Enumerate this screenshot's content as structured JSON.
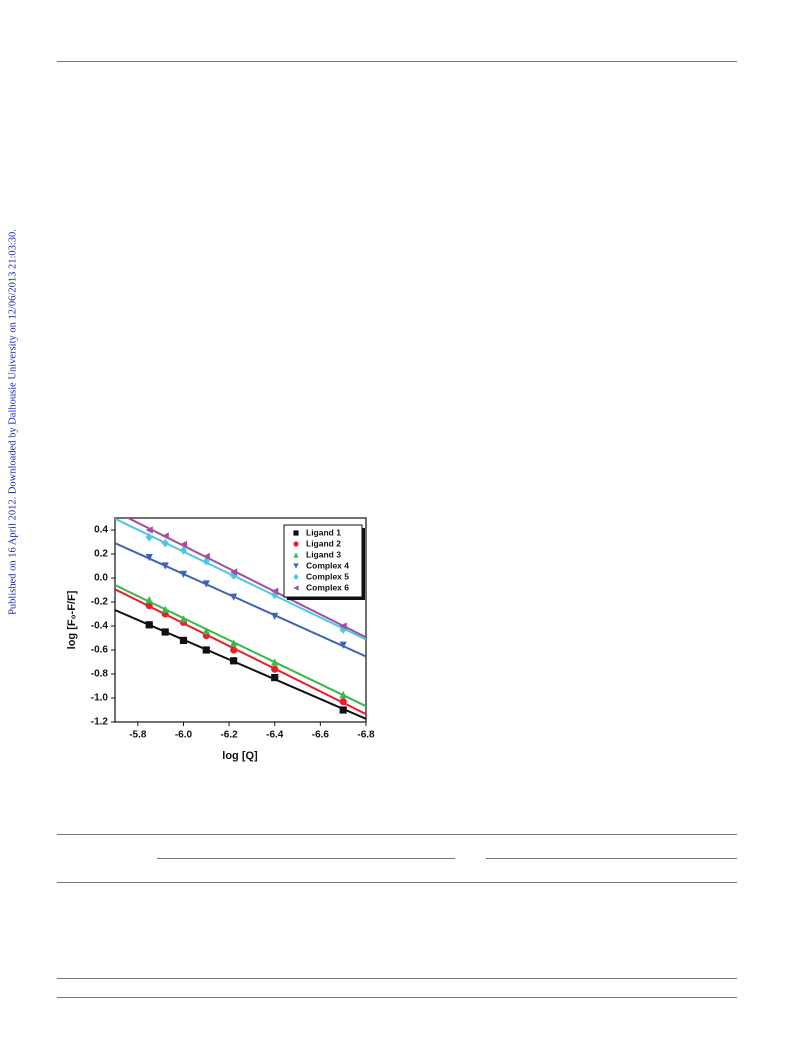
{
  "side_note": "Published on 16 April 2012. Downloaded by Dalhousie University on 12/06/2013 21:03:30.",
  "chart_data": {
    "type": "scatter",
    "x_label": "log [Q]",
    "y_label": "log [F₀-F/F]",
    "x": [
      -5.85,
      -5.92,
      -6.0,
      -6.1,
      -6.22,
      -6.4,
      -6.7
    ],
    "series": [
      {
        "name": "Ligand 1",
        "color": "#111111",
        "marker": "square",
        "values": [
          -0.39,
          -0.45,
          -0.52,
          -0.6,
          -0.69,
          -0.83,
          -1.1
        ]
      },
      {
        "name": "Ligand 2",
        "color": "#e8202a",
        "marker": "circle",
        "values": [
          -0.23,
          -0.3,
          -0.37,
          -0.48,
          -0.6,
          -0.76,
          -1.03
        ]
      },
      {
        "name": "Ligand 3",
        "color": "#3cb84a",
        "marker": "triangle-up",
        "values": [
          -0.18,
          -0.26,
          -0.34,
          -0.44,
          -0.54,
          -0.7,
          -0.97
        ]
      },
      {
        "name": "Complex 4",
        "color": "#3f64b8",
        "marker": "triangle-down",
        "values": [
          0.17,
          0.1,
          0.03,
          -0.05,
          -0.16,
          -0.32,
          -0.56
        ]
      },
      {
        "name": "Complex 5",
        "color": "#4fc6e6",
        "marker": "diamond",
        "values": [
          0.34,
          0.29,
          0.23,
          0.14,
          0.02,
          -0.14,
          -0.43
        ]
      },
      {
        "name": "Complex 6",
        "color": "#a0509c",
        "marker": "triangle-left",
        "values": [
          0.4,
          0.35,
          0.28,
          0.18,
          0.05,
          -0.11,
          -0.4
        ]
      }
    ],
    "xlim": [
      -5.7,
      -6.8
    ],
    "xticks": [
      -5.8,
      {
        "value": -6,
        "label": "-6.0"
      },
      -6.2,
      -6.4,
      -6.6,
      -6.8
    ],
    "ylim": [
      -1.2,
      0.5
    ],
    "yticks": [
      0.4,
      0.2,
      {
        "value": 0,
        "label": "0.0"
      },
      -0.2,
      -0.4,
      -0.6,
      -0.8,
      {
        "value": -1,
        "label": "-1.0"
      },
      -1.2
    ],
    "fit_lines": true,
    "legend": "top-right"
  }
}
